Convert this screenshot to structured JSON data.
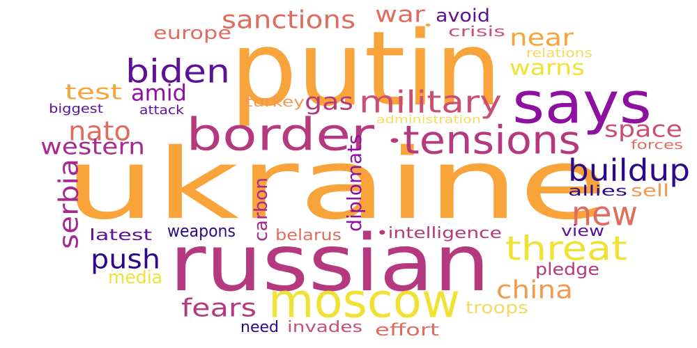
{
  "palette": {
    "orange": "#f9a43a",
    "purple": "#8d10a0",
    "indigo": "#2b0a8a",
    "magenta": "#b5397e",
    "salmon": "#e06c60",
    "yellow": "#f0e234",
    "light_yellow": "#f8d860"
  },
  "words": [
    {
      "id": "ukraine",
      "text": "ukraine",
      "color": "#f9a43a"
    },
    {
      "id": "putin",
      "text": "putin",
      "color": "#f9a43a"
    },
    {
      "id": "russian",
      "text": "russian",
      "color": "#b5397e"
    },
    {
      "id": "says",
      "text": "says",
      "color": "#8d10a0"
    },
    {
      "id": "moscow",
      "text": "moscow",
      "color": "#f0e234"
    },
    {
      "id": "border",
      "text": "border",
      "color": "#b5397e"
    },
    {
      "id": "tensions",
      "text": "tensions",
      "color": "#b5397e"
    },
    {
      "id": "biden",
      "text": "biden",
      "color": "#5c1196"
    },
    {
      "id": "military",
      "text": "military",
      "color": "#c94f73"
    },
    {
      "id": "threat",
      "text": "threat",
      "color": "#f0e234"
    },
    {
      "id": "new",
      "text": "new",
      "color": "#e06c60"
    },
    {
      "id": "buildup",
      "text": "buildup",
      "color": "#2b0a8a"
    },
    {
      "id": "sanctions",
      "text": "sanctions",
      "color": "#e06c60"
    },
    {
      "id": "nato",
      "text": "nato",
      "color": "#e06c60"
    },
    {
      "id": "western",
      "text": "western",
      "color": "#a62a90"
    },
    {
      "id": "push",
      "text": "push",
      "color": "#2b0a8a"
    },
    {
      "id": "china",
      "text": "china",
      "color": "#f19a52"
    },
    {
      "id": "fears",
      "text": "fears",
      "color": "#b5397e"
    },
    {
      "id": "space",
      "text": "space",
      "color": "#c94f73"
    },
    {
      "id": "war",
      "text": "war",
      "color": "#e06c60"
    },
    {
      "id": "amid",
      "text": "amid",
      "color": "#8d10a0"
    },
    {
      "id": "test",
      "text": "test",
      "color": "#f9a43a"
    },
    {
      "id": "gas",
      "text": "gas",
      "color": "#b5397e"
    },
    {
      "id": "near",
      "text": "near",
      "color": "#f9a43a"
    },
    {
      "id": "warns",
      "text": "warns",
      "color": "#f0e234"
    },
    {
      "id": "europe",
      "text": "europe",
      "color": "#e06c60"
    },
    {
      "id": "serbia",
      "text": "serbia",
      "color": "#a62a90"
    },
    {
      "id": "diplomats",
      "text": "diplomats",
      "color": "#8d10a0"
    },
    {
      "id": "carbon",
      "text": "carbon",
      "color": "#a62a90"
    },
    {
      "id": "avoid",
      "text": "avoid",
      "color": "#5c1196"
    },
    {
      "id": "crisis",
      "text": "crisis",
      "color": "#c94f73"
    },
    {
      "id": "relations",
      "text": "relations",
      "color": "#f8d860"
    },
    {
      "id": "biggest",
      "text": "biggest",
      "color": "#5c1196"
    },
    {
      "id": "attack",
      "text": "attack",
      "color": "#5c1196"
    },
    {
      "id": "turkey",
      "text": "turkey",
      "color": "#f19a52"
    },
    {
      "id": "administration",
      "text": "administration",
      "color": "#f8d860"
    },
    {
      "id": "forces",
      "text": "forces",
      "color": "#e06c60"
    },
    {
      "id": "allies",
      "text": "allies",
      "color": "#2b0a8a"
    },
    {
      "id": "sell",
      "text": "sell",
      "color": "#f19a52"
    },
    {
      "id": "latest",
      "text": "latest",
      "color": "#5c1196"
    },
    {
      "id": "weapons",
      "text": "weapons",
      "color": "#2b0a8a"
    },
    {
      "id": "belarus",
      "text": "belarus",
      "color": "#e06c60"
    },
    {
      "id": "intelligence",
      "text": "•intelligence",
      "color": "#b5397e"
    },
    {
      "id": "view",
      "text": "view",
      "color": "#5c1196"
    },
    {
      "id": "pledge",
      "text": "pledge",
      "color": "#b5397e"
    },
    {
      "id": "media",
      "text": "media",
      "color": "#f0e234"
    },
    {
      "id": "troops",
      "text": "troops",
      "color": "#f8d860"
    },
    {
      "id": "need",
      "text": "need",
      "color": "#2b0a8a"
    },
    {
      "id": "invades",
      "text": "invades",
      "color": "#c94f73"
    },
    {
      "id": "effort",
      "text": "effort",
      "color": "#e06c60"
    },
    {
      "id": "dot_small",
      "text": "•",
      "color": "#f9a43a"
    },
    {
      "id": "dot_tensions",
      "text": "•",
      "color": "#b5397e"
    }
  ]
}
